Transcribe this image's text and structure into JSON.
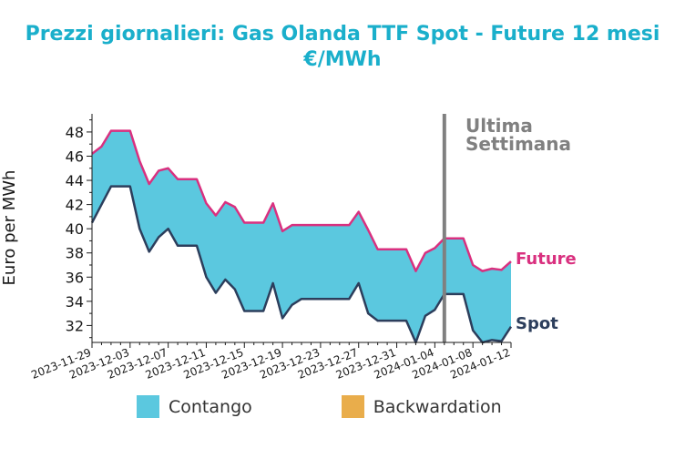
{
  "title_line1": "Prezzi giornalieri: Gas Olanda TTF Spot - Future 12 mesi",
  "title_line2": "€/MWh",
  "colors": {
    "title": "#1aafcb",
    "contango": "#5bc8df",
    "backwardation": "#e9ad4b",
    "future": "#d9307f",
    "spot": "#2c3e5c",
    "marker": "#808080"
  },
  "chart_data": {
    "type": "area",
    "ylabel": "Euro per MWh",
    "xlabel": "",
    "ylim": [
      30.6,
      49.5
    ],
    "yticks": [
      32,
      34,
      36,
      38,
      40,
      42,
      44,
      46,
      48
    ],
    "xlim": [
      "2023-11-29",
      "2024-01-12"
    ],
    "xticks": [
      "2023-11-29",
      "2023-12-03",
      "2023-12-07",
      "2023-12-11",
      "2023-12-15",
      "2023-12-19",
      "2023-12-23",
      "2023-12-27",
      "2023-12-31",
      "2024-01-04",
      "2024-01-08",
      "2024-01-12"
    ],
    "series": [
      {
        "name": "Future",
        "x": [
          "2023-11-29",
          "2023-11-30",
          "2023-12-01",
          "2023-12-02",
          "2023-12-03",
          "2023-12-04",
          "2023-12-05",
          "2023-12-06",
          "2023-12-07",
          "2023-12-08",
          "2023-12-09",
          "2023-12-10",
          "2023-12-11",
          "2023-12-12",
          "2023-12-13",
          "2023-12-14",
          "2023-12-15",
          "2023-12-16",
          "2023-12-17",
          "2023-12-18",
          "2023-12-19",
          "2023-12-20",
          "2023-12-21",
          "2023-12-22",
          "2023-12-23",
          "2023-12-24",
          "2023-12-25",
          "2023-12-26",
          "2023-12-27",
          "2023-12-28",
          "2023-12-29",
          "2023-12-30",
          "2023-12-31",
          "2024-01-01",
          "2024-01-02",
          "2024-01-03",
          "2024-01-04",
          "2024-01-05",
          "2024-01-06",
          "2024-01-07",
          "2024-01-08",
          "2024-01-09",
          "2024-01-10",
          "2024-01-11",
          "2024-01-12"
        ],
        "values": [
          46.2,
          46.8,
          48.1,
          48.1,
          48.1,
          45.6,
          43.7,
          44.8,
          45.0,
          44.1,
          44.1,
          44.1,
          42.1,
          41.1,
          42.2,
          41.8,
          40.5,
          40.5,
          40.5,
          42.1,
          39.8,
          40.3,
          40.3,
          40.3,
          40.3,
          40.3,
          40.3,
          40.3,
          41.4,
          39.9,
          38.3,
          38.3,
          38.3,
          38.3,
          36.5,
          38.0,
          38.4,
          39.2,
          39.2,
          39.2,
          37.0,
          36.5,
          36.7,
          36.6,
          37.3
        ]
      },
      {
        "name": "Spot",
        "x": [
          "2023-11-29",
          "2023-11-30",
          "2023-12-01",
          "2023-12-02",
          "2023-12-03",
          "2023-12-04",
          "2023-12-05",
          "2023-12-06",
          "2023-12-07",
          "2023-12-08",
          "2023-12-09",
          "2023-12-10",
          "2023-12-11",
          "2023-12-12",
          "2023-12-13",
          "2023-12-14",
          "2023-12-15",
          "2023-12-16",
          "2023-12-17",
          "2023-12-18",
          "2023-12-19",
          "2023-12-20",
          "2023-12-21",
          "2023-12-22",
          "2023-12-23",
          "2023-12-24",
          "2023-12-25",
          "2023-12-26",
          "2023-12-27",
          "2023-12-28",
          "2023-12-29",
          "2023-12-30",
          "2023-12-31",
          "2024-01-01",
          "2024-01-02",
          "2024-01-03",
          "2024-01-04",
          "2024-01-05",
          "2024-01-06",
          "2024-01-07",
          "2024-01-08",
          "2024-01-09",
          "2024-01-10",
          "2024-01-11",
          "2024-01-12"
        ],
        "values": [
          40.5,
          42.0,
          43.5,
          43.5,
          43.5,
          40.0,
          38.1,
          39.3,
          40.0,
          38.6,
          38.6,
          38.6,
          36.0,
          34.7,
          35.8,
          35.0,
          33.2,
          33.2,
          33.2,
          35.5,
          32.6,
          33.7,
          34.2,
          34.2,
          34.2,
          34.2,
          34.2,
          34.2,
          35.5,
          33.0,
          32.4,
          32.4,
          32.4,
          32.4,
          30.6,
          32.8,
          33.3,
          34.6,
          34.6,
          34.6,
          31.6,
          30.6,
          30.8,
          30.7,
          31.9
        ]
      }
    ],
    "annotations": [
      {
        "text_line1": "Ultima",
        "text_line2": "Settimana",
        "x": "2024-01-05"
      }
    ],
    "series_labels": {
      "future": "Future",
      "spot": "Spot"
    },
    "legend": {
      "position": "bottom",
      "items": [
        {
          "label": "Contango",
          "color": "#5bc8df"
        },
        {
          "label": "Backwardation",
          "color": "#e9ad4b"
        }
      ]
    },
    "grid": false
  }
}
